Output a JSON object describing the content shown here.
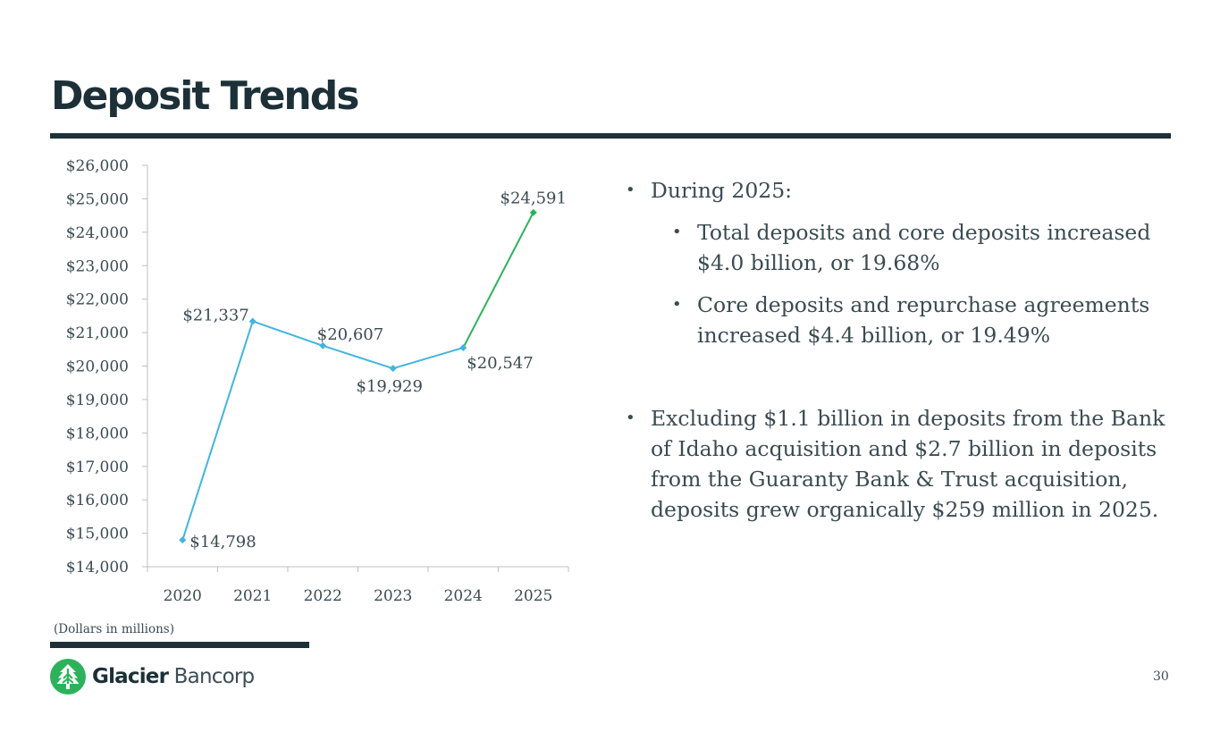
{
  "slide": {
    "title": "Deposit Trends",
    "note": "(Dollars in millions)",
    "page_number": "30"
  },
  "bullets": [
    {
      "text": "During 2025:"
    },
    {
      "text": "Total deposits and core deposits increased $4.0 billion, or 19.68%"
    },
    {
      "text": "Core deposits and repurchase agreements increased $4.4 billion, or 19.49%"
    },
    {
      "text": "Excluding $1.1 billion in deposits from the Bank of Idaho acquisition and $2.7 billion in deposits from the Guaranty Bank & Trust  acquisition, deposits grew organically $259 million in 2025."
    }
  ],
  "logo": {
    "brand": "Glacier",
    "suffix": "Bancorp"
  },
  "colors": {
    "dark": "#1d3038",
    "line_blue": "#42b4e0",
    "line_green": "#2cb35a",
    "logo_green": "#2db25c"
  },
  "chart_data": {
    "type": "line",
    "categories": [
      "2020",
      "2021",
      "2022",
      "2023",
      "2024",
      "2025"
    ],
    "values": [
      14798,
      21337,
      20607,
      19929,
      20547,
      24591
    ],
    "data_labels": [
      "$14,798",
      "$21,337",
      "$20,607",
      "$19,929",
      "$20,547",
      "$24,591"
    ],
    "ylim": [
      14000,
      26000
    ],
    "ytick_values": [
      14000,
      15000,
      16000,
      17000,
      18000,
      19000,
      20000,
      21000,
      22000,
      23000,
      24000,
      25000,
      26000
    ],
    "ytick_labels": [
      "$14,000",
      "$15,000",
      "$16,000",
      "$17,000",
      "$18,000",
      "$19,000",
      "$20,000",
      "$21,000",
      "$22,000",
      "$23,000",
      "$24,000",
      "$25,000",
      "$26,000"
    ],
    "title": "",
    "xlabel": "",
    "ylabel": ""
  }
}
